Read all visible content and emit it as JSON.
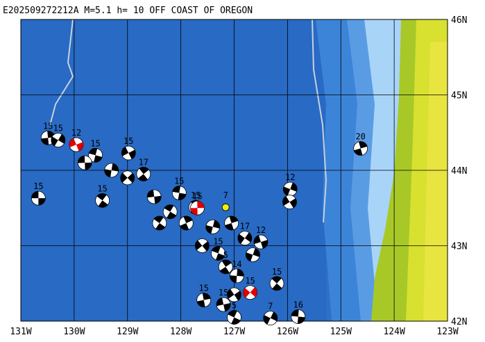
{
  "title": "E202509272212A M=5.1 h= 10 OFF COAST OF OREGON",
  "lonlim": [
    -131,
    -123
  ],
  "latlim": [
    42,
    46
  ],
  "xticks": [
    {
      "value": -131,
      "label": "131W"
    },
    {
      "value": -130,
      "label": "130W"
    },
    {
      "value": -129,
      "label": "129W"
    },
    {
      "value": -128,
      "label": "128W"
    },
    {
      "value": -127,
      "label": "127W"
    },
    {
      "value": -126,
      "label": "126W"
    },
    {
      "value": -125,
      "label": "125W"
    },
    {
      "value": -124,
      "label": "124W"
    },
    {
      "value": -123,
      "label": "123W"
    }
  ],
  "yticks": [
    {
      "value": 46,
      "label": "46N"
    },
    {
      "value": 45,
      "label": "45N"
    },
    {
      "value": 44,
      "label": "44N"
    },
    {
      "value": 43,
      "label": "43N"
    },
    {
      "value": 42,
      "label": "42N"
    }
  ],
  "events": [
    {
      "label": "15",
      "lon": -130.67,
      "lat": 43.63,
      "color": "#000"
    },
    {
      "label": "15",
      "lon": -129.47,
      "lat": 43.6,
      "color": "#000"
    },
    {
      "label": "20",
      "lon": -124.63,
      "lat": 44.29,
      "color": "#000"
    },
    {
      "label": "12",
      "lon": -125.95,
      "lat": 43.75,
      "color": "#000"
    },
    {
      "label": null,
      "lon": -125.96,
      "lat": 43.58,
      "color": "#000"
    },
    {
      "label": "16",
      "lon": -125.8,
      "lat": 42.06,
      "color": "#000"
    },
    {
      "label": "15",
      "lon": -126.2,
      "lat": 42.5,
      "color": "#000"
    },
    {
      "label": "15",
      "lon": -127.57,
      "lat": 42.28,
      "color": "#000"
    },
    {
      "label": "7",
      "lon": -126.32,
      "lat": 42.04,
      "color": "#000"
    },
    {
      "label": "15",
      "lon": -128.98,
      "lat": 44.23,
      "color": "#000"
    },
    {
      "label": "15",
      "lon": -128.03,
      "lat": 43.7,
      "color": "#000"
    },
    {
      "label": "15",
      "lon": -127.72,
      "lat": 43.51,
      "color": "#000"
    },
    {
      "label": "15",
      "lon": -130.49,
      "lat": 44.43,
      "color": "#000"
    },
    {
      "label": "15",
      "lon": -130.3,
      "lat": 44.4,
      "color": "#000"
    },
    {
      "label": "12",
      "lon": -129.96,
      "lat": 44.34,
      "color": "#e00000"
    },
    {
      "label": "15",
      "lon": -129.6,
      "lat": 44.2,
      "color": "#000"
    },
    {
      "label": "17",
      "lon": -128.7,
      "lat": 43.95,
      "color": "#000"
    },
    {
      "label": "15",
      "lon": -127.69,
      "lat": 43.5,
      "color": "#e00000"
    },
    {
      "label": "17",
      "lon": -126.8,
      "lat": 43.1,
      "color": "#000"
    },
    {
      "label": "12",
      "lon": -126.5,
      "lat": 43.05,
      "color": "#000"
    },
    {
      "label": "15",
      "lon": -127.3,
      "lat": 42.9,
      "color": "#000"
    },
    {
      "label": "5",
      "lon": -127.16,
      "lat": 42.72,
      "color": "#000"
    },
    {
      "label": "14",
      "lon": -126.95,
      "lat": 42.6,
      "color": "#000"
    },
    {
      "label": "15",
      "lon": -126.7,
      "lat": 42.38,
      "color": "#e00000"
    },
    {
      "label": "15",
      "lon": -127.2,
      "lat": 42.22,
      "color": "#000"
    },
    {
      "label": "5",
      "lon": -127.0,
      "lat": 42.05,
      "color": "#000"
    },
    {
      "label": "7",
      "lon": -127.16,
      "lat": 43.51,
      "color": "#f0f000"
    },
    {
      "label": null,
      "lon": -129.3,
      "lat": 44.0,
      "color": "#000"
    },
    {
      "label": null,
      "lon": -129.0,
      "lat": 43.9,
      "color": "#000"
    },
    {
      "label": null,
      "lon": -128.5,
      "lat": 43.65,
      "color": "#000"
    },
    {
      "label": null,
      "lon": -128.2,
      "lat": 43.45,
      "color": "#000"
    },
    {
      "label": null,
      "lon": -127.9,
      "lat": 43.3,
      "color": "#000"
    },
    {
      "label": null,
      "lon": -127.4,
      "lat": 43.25,
      "color": "#000"
    },
    {
      "label": null,
      "lon": -127.6,
      "lat": 43.0,
      "color": "#000"
    },
    {
      "label": null,
      "lon": -129.8,
      "lat": 44.1,
      "color": "#000"
    },
    {
      "label": null,
      "lon": -128.4,
      "lat": 43.3,
      "color": "#000"
    },
    {
      "label": null,
      "lon": -127.05,
      "lat": 43.3,
      "color": "#000"
    },
    {
      "label": null,
      "lon": -126.65,
      "lat": 42.88,
      "color": "#000"
    },
    {
      "label": null,
      "lon": -127.0,
      "lat": 42.35,
      "color": "#000"
    }
  ]
}
